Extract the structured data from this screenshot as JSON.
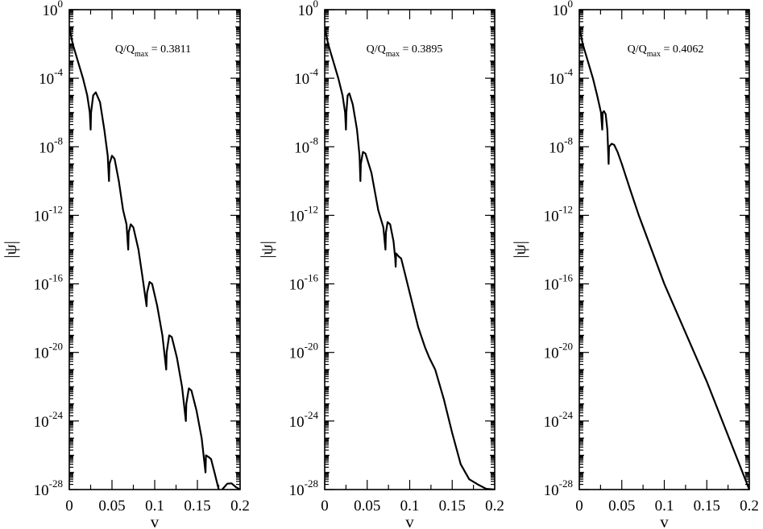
{
  "chart_data": [
    {
      "type": "line",
      "xlabel": "v",
      "ylabel": "|ψ|",
      "yscale": "log",
      "xlim": [
        0,
        0.2
      ],
      "ylim": [
        1e-28,
        1
      ],
      "x_ticks": [
        "0",
        "0.05",
        "0.1",
        "0.15",
        "0.2"
      ],
      "y_ticks": [
        {
          "base": "10",
          "exp": "0"
        },
        {
          "base": "10",
          "exp": "-4"
        },
        {
          "base": "10",
          "exp": "-8"
        },
        {
          "base": "10",
          "exp": "-12"
        },
        {
          "base": "10",
          "exp": "-16"
        },
        {
          "base": "10",
          "exp": "-20"
        },
        {
          "base": "10",
          "exp": "-24"
        },
        {
          "base": "10",
          "exp": "-28"
        }
      ],
      "annotation": {
        "prefix": "Q/Q",
        "subscript": "max",
        "suffix": " = 0.3811"
      },
      "series": [
        {
          "points": [
            [
              0,
              0.1
            ],
            [
              0.004,
              0.01
            ],
            [
              0.01,
              0.001
            ],
            [
              0.016,
              0.0001
            ],
            [
              0.021,
              1e-05
            ],
            [
              0.024,
              1e-06
            ],
            [
              0.025,
              1e-07
            ],
            [
              0.0255,
              1e-06
            ],
            [
              0.028,
              1e-05
            ],
            [
              0.031,
              1.5e-05
            ],
            [
              0.036,
              4e-06
            ],
            [
              0.041,
              1e-07
            ],
            [
              0.045,
              3e-09
            ],
            [
              0.0465,
              1e-10
            ],
            [
              0.047,
              1e-09
            ],
            [
              0.05,
              3e-09
            ],
            [
              0.053,
              2e-09
            ],
            [
              0.058,
              1e-10
            ],
            [
              0.063,
              2e-12
            ],
            [
              0.067,
              3e-13
            ],
            [
              0.069,
              1e-14
            ],
            [
              0.0695,
              1e-13
            ],
            [
              0.072,
              3e-13
            ],
            [
              0.075,
              2e-13
            ],
            [
              0.081,
              1e-14
            ],
            [
              0.086,
              2e-16
            ],
            [
              0.0905,
              5e-18
            ],
            [
              0.091,
              3e-17
            ],
            [
              0.094,
              1.3e-16
            ],
            [
              0.097,
              1e-16
            ],
            [
              0.103,
              5e-18
            ],
            [
              0.109,
              1e-19
            ],
            [
              0.1135,
              1e-21
            ],
            [
              0.114,
              1e-20
            ],
            [
              0.117,
              1e-19
            ],
            [
              0.12,
              8e-20
            ],
            [
              0.126,
              5e-21
            ],
            [
              0.132,
              1e-22
            ],
            [
              0.1365,
              1e-24
            ],
            [
              0.137,
              1e-23
            ],
            [
              0.14,
              8e-23
            ],
            [
              0.143,
              6e-23
            ],
            [
              0.149,
              4e-24
            ],
            [
              0.155,
              1e-25
            ],
            [
              0.1595,
              1e-27
            ],
            [
              0.16,
              1e-26
            ],
            [
              0.163,
              8e-27
            ],
            [
              0.166,
              6e-27
            ],
            [
              0.17,
              1e-27
            ],
            [
              0.175,
              1e-28
            ],
            [
              0.178,
              1e-29
            ],
            [
              0.179,
              1e-28
            ],
            [
              0.185,
              2.2e-28
            ],
            [
              0.19,
              2.3e-28
            ],
            [
              0.195,
              1.4e-28
            ],
            [
              0.2,
              1e-28
            ]
          ]
        }
      ]
    },
    {
      "type": "line",
      "xlabel": "v",
      "ylabel": "|ψ|",
      "yscale": "log",
      "xlim": [
        0,
        0.2
      ],
      "ylim": [
        1e-28,
        1
      ],
      "x_ticks": [
        "0",
        "0.05",
        "0.1",
        "0.15",
        "0.2"
      ],
      "y_ticks": [
        {
          "base": "10",
          "exp": "0"
        },
        {
          "base": "10",
          "exp": "-4"
        },
        {
          "base": "10",
          "exp": "-8"
        },
        {
          "base": "10",
          "exp": "-12"
        },
        {
          "base": "10",
          "exp": "-16"
        },
        {
          "base": "10",
          "exp": "-20"
        },
        {
          "base": "10",
          "exp": "-24"
        },
        {
          "base": "10",
          "exp": "-28"
        }
      ],
      "annotation": {
        "prefix": "Q/Q",
        "subscript": "max",
        "suffix": " = 0.3895"
      },
      "series": [
        {
          "points": [
            [
              0,
              0.1
            ],
            [
              0.004,
              0.01
            ],
            [
              0.01,
              0.001
            ],
            [
              0.016,
              0.0001
            ],
            [
              0.021,
              1e-05
            ],
            [
              0.024,
              1e-06
            ],
            [
              0.025,
              1e-07
            ],
            [
              0.0255,
              1e-06
            ],
            [
              0.027,
              1e-05
            ],
            [
              0.029,
              1.3e-05
            ],
            [
              0.033,
              3e-06
            ],
            [
              0.038,
              1e-07
            ],
            [
              0.041,
              3e-09
            ],
            [
              0.042,
              1e-10
            ],
            [
              0.0425,
              1e-09
            ],
            [
              0.045,
              5e-09
            ],
            [
              0.048,
              4e-09
            ],
            [
              0.055,
              3e-10
            ],
            [
              0.063,
              2e-12
            ],
            [
              0.069,
              2e-13
            ],
            [
              0.0715,
              1e-14
            ],
            [
              0.072,
              1e-13
            ],
            [
              0.074,
              4e-13
            ],
            [
              0.077,
              3e-13
            ],
            [
              0.081,
              3e-14
            ],
            [
              0.083,
              3e-15
            ],
            [
              0.0835,
              1e-15
            ],
            [
              0.084,
              6e-15
            ],
            [
              0.087,
              4e-15
            ],
            [
              0.09,
              3e-15
            ],
            [
              0.095,
              3e-16
            ],
            [
              0.1,
              3e-17
            ],
            [
              0.11,
              3e-19
            ],
            [
              0.118,
              2e-20
            ],
            [
              0.123,
              5e-21
            ],
            [
              0.13,
              1e-21
            ],
            [
              0.14,
              2e-23
            ],
            [
              0.15,
              2e-25
            ],
            [
              0.16,
              3e-27
            ],
            [
              0.17,
              4e-28
            ],
            [
              0.18,
              2e-28
            ],
            [
              0.19,
              1.1e-28
            ],
            [
              0.2,
              1e-28
            ]
          ]
        }
      ]
    },
    {
      "type": "line",
      "xlabel": "v",
      "ylabel": "|ψ|",
      "yscale": "log",
      "xlim": [
        0,
        0.2
      ],
      "ylim": [
        1e-28,
        1
      ],
      "x_ticks": [
        "0",
        "0.05",
        "0.1",
        "0.15",
        "0.2"
      ],
      "y_ticks": [
        {
          "base": "10",
          "exp": "0"
        },
        {
          "base": "10",
          "exp": "-4"
        },
        {
          "base": "10",
          "exp": "-8"
        },
        {
          "base": "10",
          "exp": "-12"
        },
        {
          "base": "10",
          "exp": "-16"
        },
        {
          "base": "10",
          "exp": "-20"
        },
        {
          "base": "10",
          "exp": "-24"
        },
        {
          "base": "10",
          "exp": "-28"
        }
      ],
      "annotation": {
        "prefix": "Q/Q",
        "subscript": "max",
        "suffix": " = 0.4062"
      },
      "series": [
        {
          "points": [
            [
              0,
              0.1
            ],
            [
              0.004,
              0.01
            ],
            [
              0.01,
              0.001
            ],
            [
              0.016,
              0.0001
            ],
            [
              0.021,
              1e-05
            ],
            [
              0.0255,
              1e-06
            ],
            [
              0.027,
              1e-07
            ],
            [
              0.0275,
              1e-06
            ],
            [
              0.029,
              1.2e-06
            ],
            [
              0.031,
              8e-07
            ],
            [
              0.033,
              1e-07
            ],
            [
              0.0345,
              1e-09
            ],
            [
              0.035,
              1e-08
            ],
            [
              0.038,
              1.5e-08
            ],
            [
              0.041,
              1.3e-08
            ],
            [
              0.045,
              5e-09
            ],
            [
              0.05,
              1e-09
            ],
            [
              0.06,
              3e-11
            ],
            [
              0.07,
              1e-12
            ],
            [
              0.1,
              1e-16
            ],
            [
              0.15,
              2e-22
            ],
            [
              0.2,
              1e-28
            ]
          ]
        }
      ]
    }
  ]
}
